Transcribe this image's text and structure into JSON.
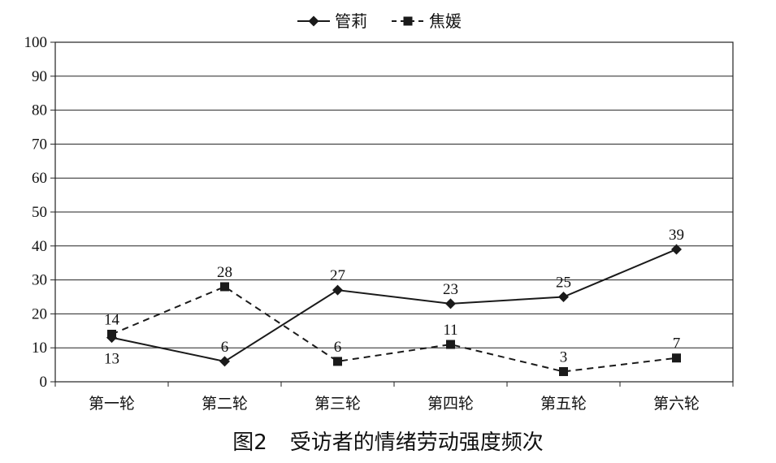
{
  "chart_data": {
    "type": "line",
    "title": "",
    "xlabel": "",
    "ylabel": "",
    "categories": [
      "第一轮",
      "第二轮",
      "第三轮",
      "第四轮",
      "第五轮",
      "第六轮"
    ],
    "ylim": [
      0,
      100
    ],
    "yticks": [
      "0",
      "10",
      "20",
      "30",
      "40",
      "50",
      "60",
      "70",
      "80",
      "90",
      "100"
    ],
    "grid": true,
    "legend_position": "top",
    "series": [
      {
        "name": "管莉",
        "values": [
          13,
          6,
          27,
          23,
          25,
          39
        ],
        "marker": "diamond",
        "line_style": "solid",
        "color": "#1a1a1a"
      },
      {
        "name": "焦媛",
        "values": [
          14,
          28,
          6,
          11,
          3,
          7
        ],
        "marker": "square",
        "line_style": "dashed",
        "color": "#1a1a1a"
      }
    ],
    "data_labels": [
      [
        "13",
        "6",
        "27",
        "23",
        "25",
        "39"
      ],
      [
        "14",
        "28",
        "6",
        "11",
        "3",
        "7"
      ]
    ]
  },
  "caption": {
    "figure_number": "图2",
    "text": "受访者的情绪劳动强度频次"
  }
}
